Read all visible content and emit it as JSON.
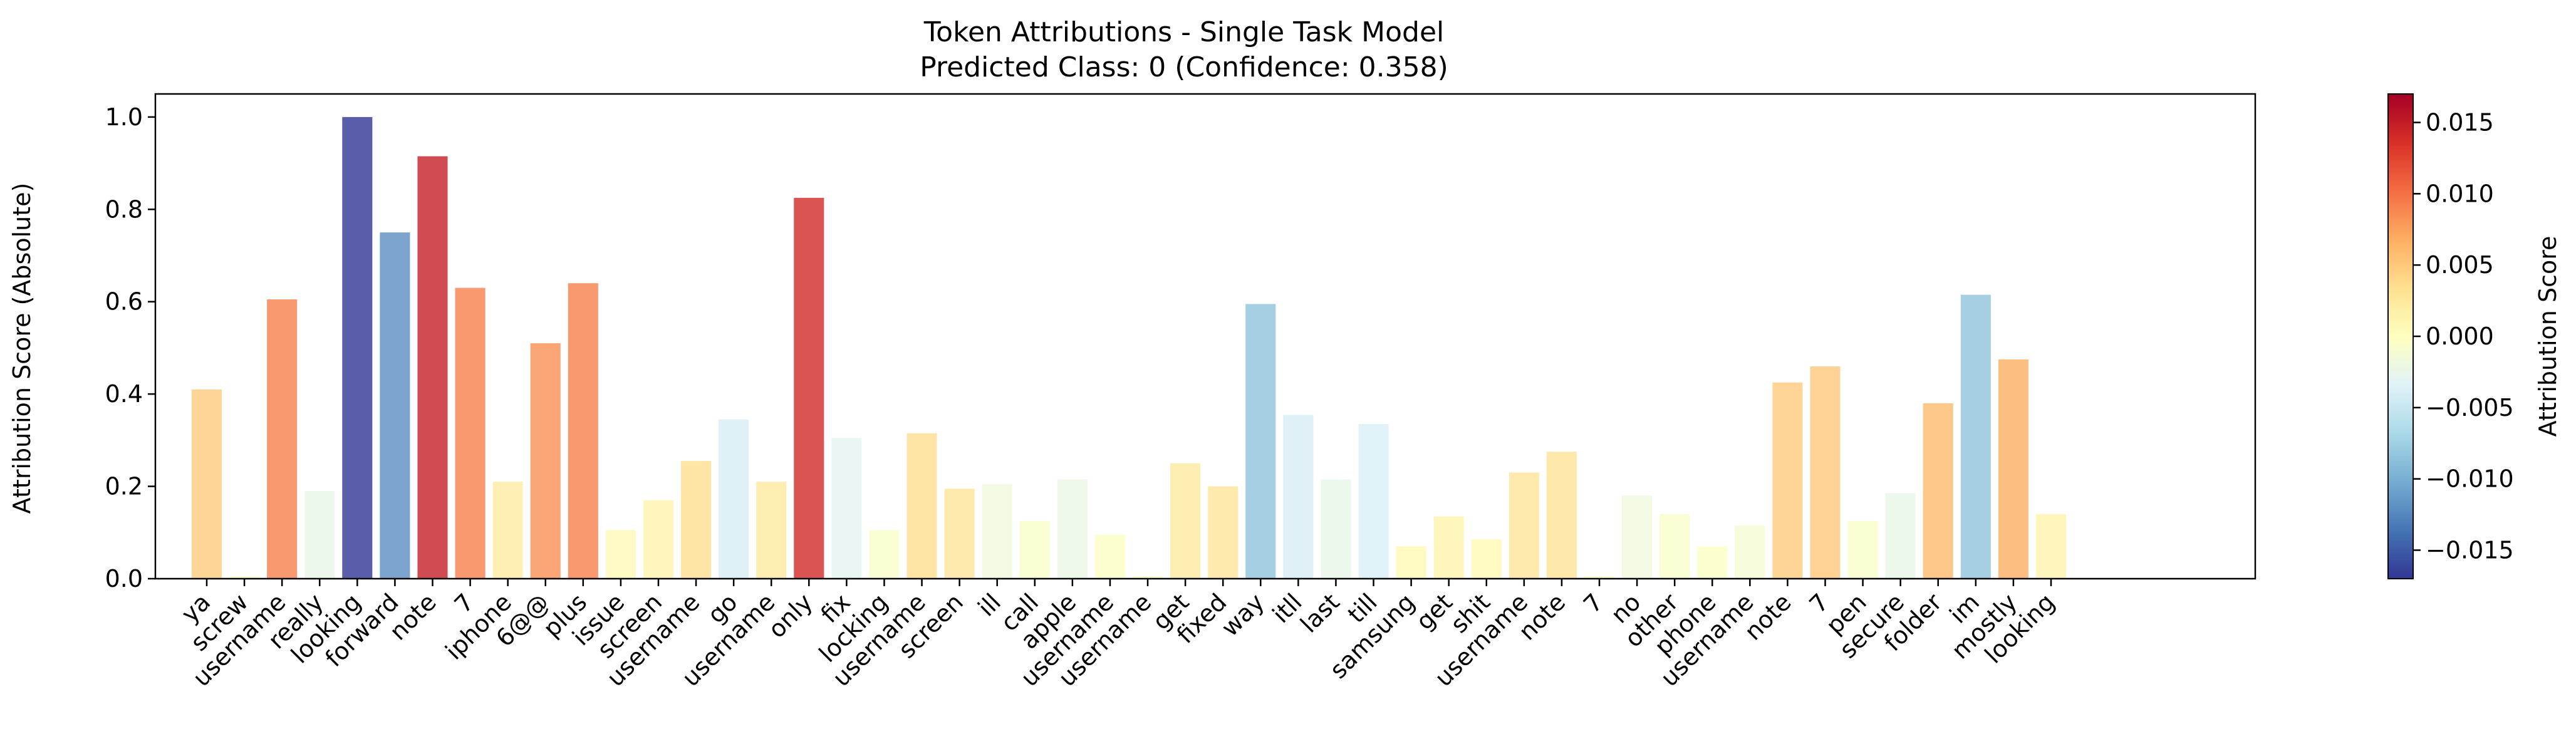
{
  "chart_data": {
    "type": "bar",
    "title": "Token Attributions - Single Task Model",
    "subtitle": "Predicted Class: 0 (Confidence: 0.358)",
    "xlabel": "",
    "ylabel": "Attribution Score (Absolute)",
    "ylim": [
      0,
      1.05
    ],
    "yticks": [
      "0.0",
      "0.2",
      "0.4",
      "0.6",
      "0.8",
      "1.0"
    ],
    "grid": false,
    "categories": [
      "ya",
      "screw",
      "username",
      "really",
      "looking",
      "forward",
      "note",
      "7",
      "iphone",
      "6@@",
      "plus",
      "issue",
      "screen",
      "username",
      "go",
      "username",
      "only",
      "fix",
      "locking",
      "username",
      "screen",
      "ill",
      "call",
      "apple",
      "username",
      "username",
      "get",
      "fixed",
      "way",
      "itll",
      "last",
      "till",
      "samsung",
      "get",
      "shit",
      "username",
      "note",
      "7",
      "no",
      "other",
      "phone",
      "username",
      "note",
      "7",
      "pen",
      "secure",
      "folder",
      "im",
      "mostly",
      "looking"
    ],
    "values": [
      0.41,
      0.005,
      0.605,
      0.19,
      1.0,
      0.75,
      0.915,
      0.63,
      0.21,
      0.51,
      0.64,
      0.105,
      0.17,
      0.255,
      0.345,
      0.21,
      0.825,
      0.305,
      0.105,
      0.315,
      0.195,
      0.205,
      0.125,
      0.215,
      0.095,
      0.005,
      0.25,
      0.2,
      0.595,
      0.355,
      0.215,
      0.335,
      0.07,
      0.135,
      0.085,
      0.23,
      0.275,
      0.005,
      0.18,
      0.14,
      0.07,
      0.115,
      0.425,
      0.46,
      0.125,
      0.185,
      0.38,
      0.615,
      0.475,
      0.14
    ],
    "attribution": [
      0.0048,
      0.0,
      0.0092,
      -0.0025,
      -0.017,
      -0.012,
      0.0148,
      0.0092,
      0.0022,
      0.0085,
      0.0092,
      0.0008,
      0.0012,
      0.0035,
      -0.004,
      0.0025,
      0.014,
      -0.003,
      -0.0005,
      0.0035,
      0.0028,
      -0.0018,
      -0.0005,
      -0.0022,
      -0.0002,
      0.0,
      0.0025,
      0.0028,
      -0.0085,
      -0.004,
      -0.0025,
      -0.0038,
      0.0009,
      0.0012,
      0.0009,
      0.0028,
      0.003,
      0.0,
      -0.0018,
      -0.0006,
      -0.0002,
      -0.0012,
      0.0048,
      0.005,
      -0.0005,
      -0.0025,
      0.006,
      -0.0085,
      0.0068,
      0.0012
    ],
    "colorbar": {
      "label": "Attribution Score",
      "range": [
        -0.017,
        0.017
      ],
      "ticks": [
        "0.015",
        "0.010",
        "0.005",
        "0.000",
        "−0.005",
        "−0.010",
        "−0.015"
      ],
      "colormap": [
        "#313695",
        "#4575b4",
        "#74add1",
        "#abd9e9",
        "#e0f3f8",
        "#ffffbf",
        "#fee090",
        "#fdae61",
        "#f46d43",
        "#d73027",
        "#a50026"
      ]
    }
  }
}
